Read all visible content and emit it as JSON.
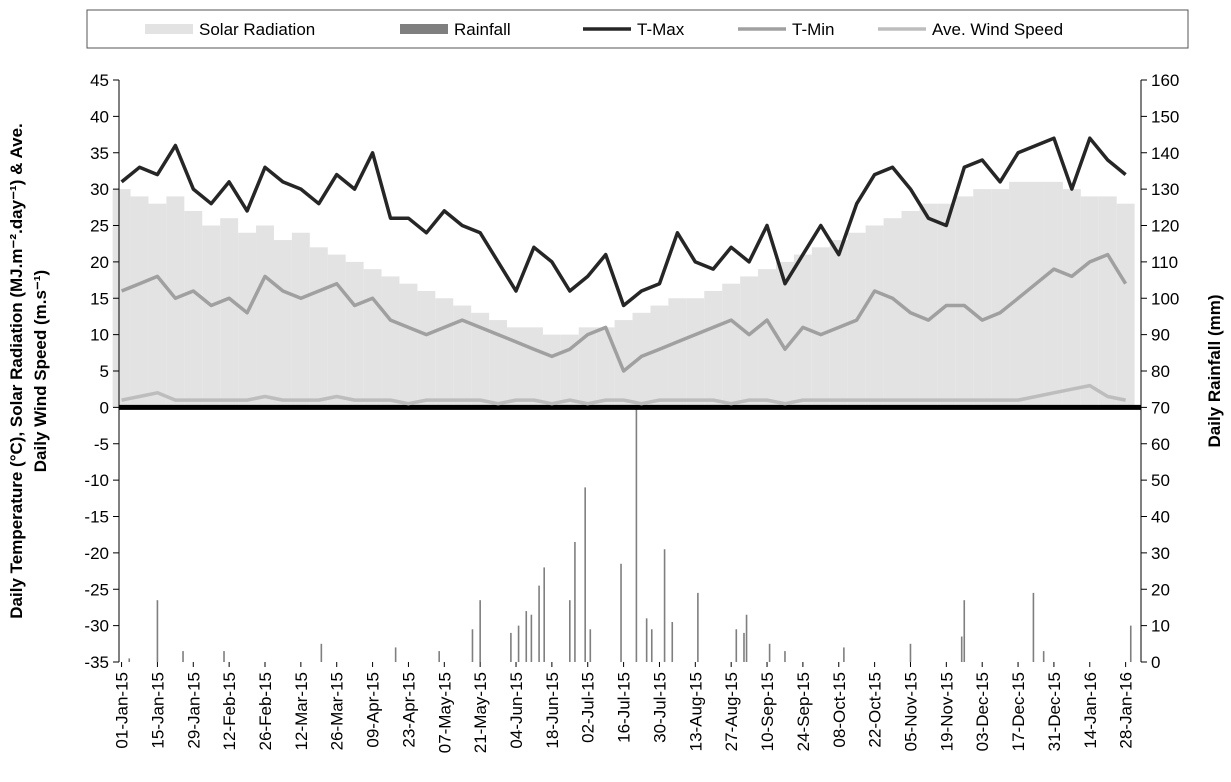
{
  "chart_data": {
    "type": "combo",
    "ylabel": [
      "Daily Temperature (°C), Solar Radiation (MJ.m⁻².day⁻¹) & Ave.",
      "Daily Wind Speed (m.s⁻¹)"
    ],
    "y2label": "Daily Rainfall (mm)",
    "x": [
      "01-Jan-15",
      "08-Jan-15",
      "15-Jan-15",
      "22-Jan-15",
      "29-Jan-15",
      "05-Feb-15",
      "12-Feb-15",
      "19-Feb-15",
      "26-Feb-15",
      "05-Mar-15",
      "12-Mar-15",
      "19-Mar-15",
      "26-Mar-15",
      "02-Apr-15",
      "09-Apr-15",
      "16-Apr-15",
      "23-Apr-15",
      "30-Apr-15",
      "07-May-15",
      "14-May-15",
      "21-May-15",
      "28-May-15",
      "04-Jun-15",
      "11-Jun-15",
      "18-Jun-15",
      "25-Jun-15",
      "02-Jul-15",
      "09-Jul-15",
      "16-Jul-15",
      "23-Jul-15",
      "30-Jul-15",
      "06-Aug-15",
      "13-Aug-15",
      "20-Aug-15",
      "27-Aug-15",
      "03-Sep-15",
      "10-Sep-15",
      "17-Sep-15",
      "24-Sep-15",
      "01-Oct-15",
      "08-Oct-15",
      "15-Oct-15",
      "22-Oct-15",
      "29-Oct-15",
      "05-Nov-15",
      "12-Nov-15",
      "19-Nov-15",
      "26-Nov-15",
      "03-Dec-15",
      "10-Dec-15",
      "17-Dec-15",
      "24-Dec-15",
      "31-Dec-15",
      "07-Jan-16",
      "14-Jan-16",
      "21-Jan-16",
      "28-Jan-16"
    ],
    "xticks": [
      "01-Jan-15",
      "15-Jan-15",
      "29-Jan-15",
      "12-Feb-15",
      "26-Feb-15",
      "12-Mar-15",
      "26-Mar-15",
      "09-Apr-15",
      "23-Apr-15",
      "07-May-15",
      "21-May-15",
      "04-Jun-15",
      "18-Jun-15",
      "02-Jul-15",
      "16-Jul-15",
      "30-Jul-15",
      "13-Aug-15",
      "27-Aug-15",
      "10-Sep-15",
      "24-Sep-15",
      "08-Oct-15",
      "22-Oct-15",
      "05-Nov-15",
      "19-Nov-15",
      "03-Dec-15",
      "17-Dec-15",
      "31-Dec-15",
      "14-Jan-16",
      "28-Jan-16"
    ],
    "ylim": [
      -35,
      45
    ],
    "yticks": [
      -35,
      -30,
      -25,
      -20,
      -15,
      -10,
      -5,
      0,
      5,
      10,
      15,
      20,
      25,
      30,
      35,
      40,
      45
    ],
    "y2lim": [
      0,
      160
    ],
    "y2ticks": [
      0,
      10,
      20,
      30,
      40,
      50,
      60,
      70,
      80,
      90,
      100,
      110,
      120,
      130,
      140,
      150,
      160
    ],
    "series": [
      {
        "name": "Solar Radiation",
        "type": "bar",
        "color": "#e3e3e3",
        "values": [
          30,
          29,
          28,
          29,
          27,
          25,
          26,
          24,
          25,
          23,
          24,
          22,
          21,
          20,
          19,
          18,
          17,
          16,
          15,
          14,
          13,
          12,
          11,
          11,
          10,
          10,
          11,
          11,
          12,
          13,
          14,
          15,
          15,
          16,
          17,
          18,
          19,
          20,
          21,
          22,
          23,
          24,
          25,
          26,
          27,
          28,
          28,
          29,
          30,
          30,
          31,
          31,
          31,
          30,
          29,
          29,
          28
        ]
      },
      {
        "name": "Rainfall",
        "type": "bar",
        "axis": "y2",
        "color": "#7f7f7f",
        "x": [
          "04-Jan-15",
          "15-Jan-15",
          "25-Jan-15",
          "10-Feb-15",
          "20-Mar-15",
          "18-Apr-15",
          "05-May-15",
          "18-May-15",
          "21-May-15",
          "02-Jun-15",
          "05-Jun-15",
          "08-Jun-15",
          "10-Jun-15",
          "13-Jun-15",
          "15-Jun-15",
          "25-Jun-15",
          "27-Jun-15",
          "01-Jul-15",
          "03-Jul-15",
          "15-Jul-15",
          "21-Jul-15",
          "25-Jul-15",
          "27-Jul-15",
          "01-Aug-15",
          "04-Aug-15",
          "14-Aug-15",
          "29-Aug-15",
          "01-Sep-15",
          "02-Sep-15",
          "11-Sep-15",
          "17-Sep-15",
          "10-Oct-15",
          "05-Nov-15",
          "25-Nov-15",
          "26-Nov-15",
          "23-Dec-15",
          "27-Dec-15",
          "30-Jan-16"
        ],
        "values": [
          1,
          17,
          3,
          3,
          5,
          4,
          3,
          9,
          17,
          8,
          10,
          14,
          13,
          21,
          26,
          17,
          33,
          48,
          9,
          27,
          70,
          12,
          9,
          31,
          11,
          19,
          9,
          8,
          13,
          5,
          3,
          4,
          5,
          7,
          17,
          19,
          3,
          10
        ]
      },
      {
        "name": "T-Max",
        "type": "line",
        "color": "#262626",
        "values": [
          31,
          33,
          32,
          36,
          30,
          28,
          31,
          27,
          33,
          31,
          30,
          28,
          32,
          30,
          35,
          26,
          26,
          24,
          27,
          25,
          24,
          20,
          16,
          22,
          20,
          16,
          18,
          21,
          14,
          16,
          17,
          24,
          20,
          19,
          22,
          20,
          25,
          17,
          21,
          25,
          21,
          28,
          32,
          33,
          30,
          26,
          25,
          33,
          34,
          31,
          35,
          36,
          37,
          30,
          37,
          34,
          32
        ]
      },
      {
        "name": "T-Min",
        "type": "line",
        "color": "#a0a0a0",
        "values": [
          16,
          17,
          18,
          15,
          16,
          14,
          15,
          13,
          18,
          16,
          15,
          16,
          17,
          14,
          15,
          12,
          11,
          10,
          11,
          12,
          11,
          10,
          9,
          8,
          7,
          8,
          10,
          11,
          5,
          7,
          8,
          9,
          10,
          11,
          12,
          10,
          12,
          8,
          11,
          10,
          11,
          12,
          16,
          15,
          13,
          12,
          14,
          14,
          12,
          13,
          15,
          17,
          19,
          18,
          20,
          21,
          17
        ]
      },
      {
        "name": "Ave. Wind Speed",
        "type": "line",
        "color": "#bdbdbd",
        "values": [
          1,
          1.5,
          2,
          1,
          1,
          1,
          1,
          1,
          1.5,
          1,
          1,
          1,
          1.5,
          1,
          1,
          1,
          0.5,
          1,
          1,
          1,
          1,
          0.5,
          1,
          1,
          0.5,
          1,
          0.5,
          1,
          1,
          0.5,
          1,
          1,
          1,
          1,
          0.5,
          1,
          1,
          0.5,
          1,
          1,
          1,
          1,
          1,
          1,
          1,
          1,
          1,
          1,
          1,
          1,
          1,
          1.5,
          2,
          2.5,
          3,
          1.5,
          1
        ]
      }
    ]
  }
}
